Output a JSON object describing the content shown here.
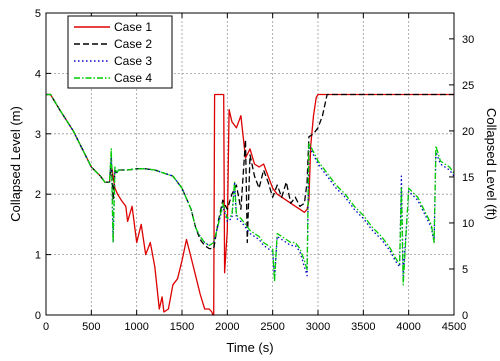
{
  "chart_data": {
    "type": "line",
    "xlabel": "Time (s)",
    "ylabel": "Collapsed Level (m)",
    "ylabel_right": "Collapsed Level (ft)",
    "xlim": [
      0,
      4500
    ],
    "ylim": [
      0,
      5
    ],
    "ylim_right": [
      0,
      5
    ],
    "x_ticks": [
      "0",
      "500",
      "1000",
      "1500",
      "2000",
      "2500",
      "3000",
      "3500",
      "4000",
      "4500"
    ],
    "y_ticks": [
      "0",
      "1",
      "2",
      "3",
      "4",
      "5"
    ],
    "y_ticks_right": [
      {
        "label": "0",
        "m": 0
      },
      {
        "label": "5",
        "m": 0.762
      },
      {
        "label": "10",
        "m": 1.524
      },
      {
        "label": "15",
        "m": 2.286
      },
      {
        "label": "20",
        "m": 3.048
      },
      {
        "label": "25",
        "m": 3.81
      },
      {
        "label": "30",
        "m": 4.572
      }
    ],
    "grid": true,
    "legend": "top-left",
    "series": [
      {
        "name": "Case 1",
        "color": "#dd0000",
        "dash": "solid",
        "x": [
          0,
          50,
          150,
          300,
          400,
          500,
          600,
          650,
          700,
          720,
          760,
          790,
          830,
          880,
          900,
          950,
          1000,
          1050,
          1100,
          1150,
          1200,
          1250,
          1280,
          1300,
          1350,
          1400,
          1450,
          1500,
          1550,
          1600,
          1650,
          1700,
          1750,
          1800,
          1830,
          1840,
          1850,
          1860,
          1960,
          1970,
          2000,
          2020,
          2050,
          2100,
          2150,
          2200,
          2250,
          2300,
          2350,
          2400,
          2450,
          2500,
          2550,
          2600,
          2650,
          2700,
          2750,
          2800,
          2850,
          2880,
          2900,
          2920,
          2950,
          2980,
          3000,
          3200,
          3500,
          4000,
          4500
        ],
        "y": [
          3.65,
          3.65,
          3.4,
          3.05,
          2.75,
          2.45,
          2.3,
          2.2,
          2.2,
          2.5,
          2.1,
          2.0,
          1.9,
          1.8,
          1.55,
          1.8,
          1.2,
          1.5,
          1.0,
          1.2,
          0.8,
          0.1,
          0.3,
          0.05,
          0.1,
          0.5,
          0.6,
          0.9,
          1.25,
          0.95,
          0.65,
          0.35,
          0.1,
          0.1,
          0.05,
          0.0,
          0.0,
          3.65,
          3.65,
          0.7,
          1.4,
          3.4,
          3.2,
          3.1,
          3.3,
          2.6,
          2.75,
          2.5,
          2.45,
          2.5,
          2.3,
          2.1,
          2.0,
          1.95,
          1.9,
          1.85,
          1.8,
          1.75,
          1.7,
          1.75,
          1.9,
          2.8,
          3.3,
          3.6,
          3.65,
          3.65,
          3.65,
          3.65,
          3.65
        ]
      },
      {
        "name": "Case 2",
        "color": "#000000",
        "dash": "dashed",
        "x": [
          0,
          50,
          150,
          300,
          400,
          500,
          600,
          650,
          700,
          720,
          740,
          760,
          780,
          800,
          900,
          1000,
          1100,
          1200,
          1300,
          1400,
          1500,
          1600,
          1650,
          1700,
          1750,
          1800,
          1850,
          1900,
          1950,
          2000,
          2050,
          2100,
          2150,
          2200,
          2220,
          2250,
          2300,
          2350,
          2400,
          2450,
          2500,
          2550,
          2600,
          2650,
          2700,
          2750,
          2800,
          2850,
          2880,
          2900,
          2950,
          3000,
          3050,
          3100,
          3200,
          3500,
          4000,
          4500
        ],
        "y": [
          3.65,
          3.65,
          3.4,
          3.05,
          2.75,
          2.45,
          2.3,
          2.2,
          2.2,
          2.6,
          1.9,
          2.4,
          2.35,
          2.4,
          2.4,
          2.42,
          2.42,
          2.4,
          2.35,
          2.3,
          2.1,
          1.75,
          1.45,
          1.25,
          1.15,
          1.1,
          1.1,
          1.55,
          1.9,
          1.75,
          2.0,
          2.15,
          1.75,
          2.9,
          1.2,
          2.65,
          2.3,
          2.1,
          2.4,
          2.2,
          1.95,
          2.15,
          1.95,
          2.2,
          1.85,
          1.95,
          1.8,
          1.85,
          2.2,
          2.95,
          3.0,
          3.1,
          3.3,
          3.65,
          3.65,
          3.65,
          3.65,
          3.65
        ]
      },
      {
        "name": "Case 3",
        "color": "#0000cc",
        "dash": "dotted",
        "x": [
          0,
          50,
          150,
          300,
          400,
          500,
          600,
          650,
          700,
          720,
          740,
          760,
          780,
          800,
          900,
          1000,
          1100,
          1200,
          1300,
          1400,
          1500,
          1600,
          1650,
          1700,
          1750,
          1800,
          1850,
          1900,
          1950,
          2000,
          2050,
          2080,
          2100,
          2150,
          2200,
          2250,
          2300,
          2350,
          2400,
          2450,
          2500,
          2520,
          2550,
          2600,
          2650,
          2700,
          2750,
          2800,
          2850,
          2880,
          2900,
          2950,
          3000,
          3100,
          3200,
          3300,
          3400,
          3500,
          3600,
          3700,
          3800,
          3850,
          3900,
          3920,
          3940,
          4000,
          4100,
          4200,
          4250,
          4280,
          4300,
          4350,
          4400,
          4450,
          4500
        ],
        "y": [
          3.65,
          3.65,
          3.4,
          3.05,
          2.75,
          2.45,
          2.3,
          2.2,
          2.2,
          2.65,
          1.2,
          2.4,
          2.35,
          2.4,
          2.4,
          2.42,
          2.42,
          2.4,
          2.35,
          2.3,
          2.1,
          1.75,
          1.45,
          1.3,
          1.2,
          1.15,
          1.2,
          1.5,
          1.8,
          1.55,
          1.6,
          2.2,
          1.6,
          1.55,
          1.45,
          1.35,
          1.3,
          1.25,
          1.15,
          1.1,
          1.05,
          0.6,
          1.3,
          1.25,
          1.2,
          1.15,
          1.15,
          1.05,
          0.8,
          0.65,
          2.8,
          2.65,
          2.5,
          2.3,
          2.1,
          1.95,
          1.75,
          1.6,
          1.4,
          1.25,
          1.05,
          0.9,
          0.8,
          2.3,
          0.65,
          2.05,
          1.9,
          1.6,
          1.45,
          1.2,
          2.7,
          2.5,
          2.45,
          2.4,
          2.3
        ]
      },
      {
        "name": "Case 4",
        "color": "#00cc00",
        "dash": "dashdot",
        "x": [
          0,
          50,
          150,
          300,
          400,
          500,
          600,
          650,
          700,
          720,
          740,
          760,
          780,
          800,
          900,
          1000,
          1100,
          1200,
          1300,
          1400,
          1500,
          1600,
          1650,
          1700,
          1750,
          1800,
          1850,
          1900,
          1950,
          2000,
          2050,
          2080,
          2100,
          2150,
          2200,
          2250,
          2300,
          2350,
          2400,
          2450,
          2500,
          2520,
          2550,
          2600,
          2650,
          2700,
          2750,
          2800,
          2850,
          2880,
          2900,
          2950,
          3000,
          3100,
          3200,
          3300,
          3400,
          3500,
          3600,
          3700,
          3800,
          3850,
          3900,
          3920,
          3940,
          4000,
          4100,
          4200,
          4250,
          4280,
          4300,
          4350,
          4400,
          4450,
          4500
        ],
        "y": [
          3.65,
          3.65,
          3.4,
          3.05,
          2.75,
          2.45,
          2.3,
          2.2,
          2.2,
          2.75,
          1.2,
          2.45,
          2.35,
          2.4,
          2.4,
          2.42,
          2.42,
          2.4,
          2.35,
          2.3,
          2.1,
          1.75,
          1.45,
          1.3,
          1.2,
          1.15,
          1.2,
          1.5,
          1.85,
          1.6,
          1.65,
          2.2,
          1.65,
          1.6,
          1.5,
          1.4,
          1.35,
          1.3,
          1.2,
          1.15,
          1.1,
          0.55,
          1.35,
          1.3,
          1.25,
          1.2,
          1.2,
          1.1,
          0.9,
          0.75,
          2.85,
          2.7,
          2.55,
          2.35,
          2.15,
          2.0,
          1.8,
          1.65,
          1.45,
          1.3,
          1.1,
          0.95,
          0.85,
          2.1,
          0.5,
          2.1,
          1.95,
          1.65,
          1.5,
          1.2,
          2.8,
          2.55,
          2.5,
          2.45,
          2.35
        ]
      }
    ]
  }
}
